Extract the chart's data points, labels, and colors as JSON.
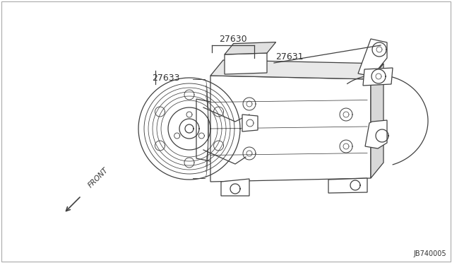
{
  "bg_color": "#ffffff",
  "outer_bg": "#f0f0f0",
  "line_color": "#404040",
  "text_color": "#333333",
  "diagram_id": "JB740005",
  "label_27630": "27630",
  "label_27631": "27631",
  "label_27633": "27633",
  "label_front": "FRONT",
  "fig_w": 6.4,
  "fig_h": 3.72,
  "dpi": 100
}
